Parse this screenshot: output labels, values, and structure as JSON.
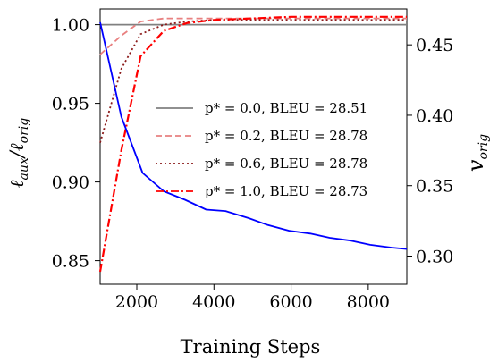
{
  "chart_data": {
    "type": "line",
    "xlabel": "Training Steps",
    "ylabel_left_main": "ℓ",
    "ylabel_left_sub1": "aux",
    "ylabel_left_mid": "/ℓ",
    "ylabel_left_sub2": "orig",
    "ylabel_right_main": "v",
    "ylabel_right_sub": "orig",
    "xlim": [
      1050,
      9000
    ],
    "ylim_left": [
      0.835,
      1.01
    ],
    "ylim_right": [
      0.28,
      0.4755
    ],
    "x_ticks": [
      2000,
      4000,
      6000,
      8000
    ],
    "x_tick_labels": [
      "2000",
      "4000",
      "6000",
      "8000"
    ],
    "y_left_ticks": [
      0.85,
      0.9,
      0.95,
      1.0
    ],
    "y_left_tick_labels": [
      "0.85",
      "0.90",
      "0.95",
      "1.00"
    ],
    "y_right_ticks": [
      0.3,
      0.35,
      0.4,
      0.45
    ],
    "y_right_tick_labels": [
      "0.30",
      "0.35",
      "0.40",
      "0.45"
    ],
    "grid": false,
    "legend_position": "center-right",
    "series": [
      {
        "name": "p* = 0.0, BLEU = 28.51",
        "legend_label": "p* = 0.0, BLEU = 28.51",
        "axis": "left",
        "color": "#808080",
        "dash": "solid",
        "x": [
          1050,
          9000
        ],
        "y": [
          1.0,
          1.0
        ]
      },
      {
        "name": "p* = 0.2, BLEU = 28.78",
        "legend_label": "p* = 0.2, BLEU = 28.78",
        "axis": "left",
        "color": "#e88080",
        "dash": "dashed",
        "x": [
          1050,
          1600,
          2100,
          2700,
          3300,
          4000,
          5000,
          6000,
          7000,
          8000,
          9000
        ],
        "y": [
          0.981,
          0.993,
          1.002,
          1.004,
          1.004,
          1.004,
          1.004,
          1.004,
          1.004,
          1.004,
          1.004
        ]
      },
      {
        "name": "p* = 0.6, BLEU = 28.78",
        "legend_label": "p* = 0.6, BLEU = 28.78",
        "axis": "left",
        "color": "#8b1a1a",
        "dash": "dotted",
        "x": [
          1050,
          1600,
          2100,
          2700,
          3300,
          4000,
          5000,
          6000,
          7000,
          8000,
          9000
        ],
        "y": [
          0.925,
          0.972,
          0.994,
          1.0,
          1.002,
          1.003,
          1.003,
          1.003,
          1.003,
          1.003,
          1.003
        ]
      },
      {
        "name": "p* = 1.0, BLEU = 28.73",
        "legend_label": "p* = 1.0, BLEU = 28.73",
        "axis": "left",
        "color": "#ff0000",
        "dash": "dashdot",
        "x": [
          1050,
          1600,
          2100,
          2700,
          3300,
          4000,
          5000,
          6000,
          7000,
          8000,
          9000
        ],
        "y": [
          0.843,
          0.92,
          0.98,
          0.996,
          1.001,
          1.003,
          1.004,
          1.005,
          1.005,
          1.005,
          1.005
        ]
      },
      {
        "name": "",
        "axis": "right",
        "color": "#0000ff",
        "dash": "solid",
        "x": [
          1050,
          1600,
          2150,
          2700,
          3250,
          3800,
          4300,
          4900,
          5400,
          5950,
          6500,
          7000,
          7550,
          8050,
          8600,
          9000
        ],
        "y": [
          0.466,
          0.399,
          0.359,
          0.346,
          0.34,
          0.333,
          0.332,
          0.327,
          0.322,
          0.318,
          0.316,
          0.313,
          0.311,
          0.308,
          0.306,
          0.305
        ]
      }
    ]
  }
}
